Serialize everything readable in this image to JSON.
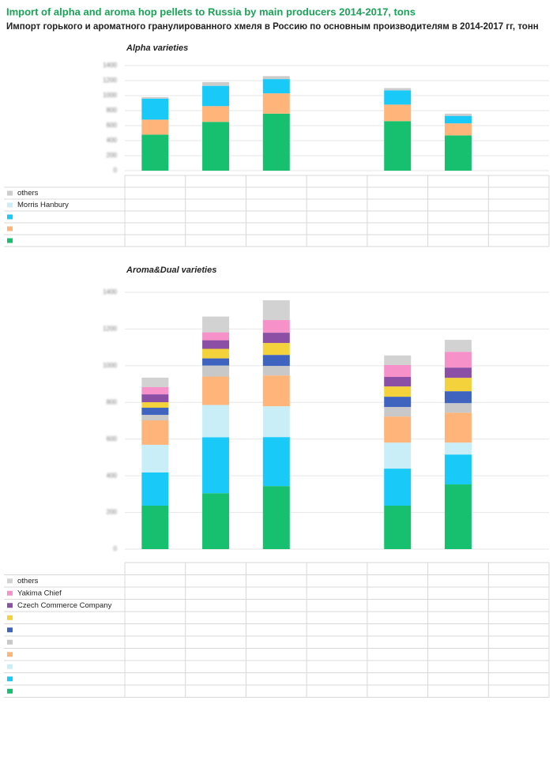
{
  "header": {
    "title": "Import of alpha and aroma hop pellets to Russia by main producers 2014-2017, tons",
    "subtitle": "Импорт горького и ароматного гранулированного хмеля в Россию по основным производителям в 2014-2017 гг, тонн"
  },
  "chart_data": [
    {
      "type": "bar",
      "stacked": true,
      "title": "Alpha varieties",
      "categories": [
        null,
        null,
        null,
        null,
        null,
        null,
        null
      ],
      "ylim": [
        0,
        1400
      ],
      "yticks": [
        0,
        200,
        400,
        600,
        800,
        1000,
        1200,
        1400
      ],
      "grid": true,
      "series": [
        {
          "color": "#16c06e",
          "values": [
            480,
            650,
            760,
            null,
            660,
            470,
            null
          ]
        },
        {
          "color": "#ffb47a",
          "values": [
            200,
            210,
            270,
            null,
            220,
            160,
            null
          ]
        },
        {
          "color": "#19c9f7",
          "values": [
            280,
            270,
            190,
            null,
            190,
            100,
            null
          ]
        },
        {
          "name": "Morris Hanbury",
          "color": "#c9eef8",
          "values": [
            0,
            0,
            0,
            null,
            0,
            0,
            null
          ]
        },
        {
          "name": "others",
          "color": "#cccccc",
          "values": [
            20,
            50,
            40,
            null,
            30,
            30,
            null
          ]
        }
      ]
    },
    {
      "type": "bar",
      "stacked": true,
      "title": "Aroma&Dual varieties",
      "categories": [
        null,
        null,
        null,
        null,
        null,
        null,
        null
      ],
      "ylim": [
        0,
        1400
      ],
      "yticks": [
        0,
        200,
        400,
        600,
        800,
        1000,
        1200,
        1400
      ],
      "grid": true,
      "series": [
        {
          "color": "#16c06e",
          "values": [
            237,
            305,
            344,
            null,
            237,
            353,
            null
          ]
        },
        {
          "color": "#19c9f7",
          "values": [
            181,
            305,
            267,
            null,
            202,
            163,
            null
          ]
        },
        {
          "color": "#c9eef8",
          "values": [
            151,
            176,
            168,
            null,
            142,
            65,
            null
          ]
        },
        {
          "color": "#ffb47a",
          "values": [
            133,
            155,
            168,
            null,
            142,
            163,
            null
          ]
        },
        {
          "color": "#c8c8c8",
          "values": [
            30,
            60,
            52,
            null,
            52,
            52,
            null
          ]
        },
        {
          "color": "#3f64c0",
          "values": [
            39,
            39,
            60,
            null,
            56,
            65,
            null
          ]
        },
        {
          "color": "#f4d23c",
          "values": [
            30,
            52,
            65,
            null,
            56,
            73,
            null
          ]
        },
        {
          "name": "Czech Commerce Company",
          "color": "#8c4fa6",
          "values": [
            43,
            47,
            56,
            null,
            52,
            56,
            null
          ]
        },
        {
          "name": "Yakima Chief",
          "color": "#f691c9",
          "values": [
            39,
            43,
            69,
            null,
            65,
            86,
            null
          ]
        },
        {
          "name": "others",
          "color": "#d2d2d2",
          "values": [
            52,
            86,
            108,
            null,
            52,
            65,
            null
          ]
        }
      ]
    }
  ]
}
